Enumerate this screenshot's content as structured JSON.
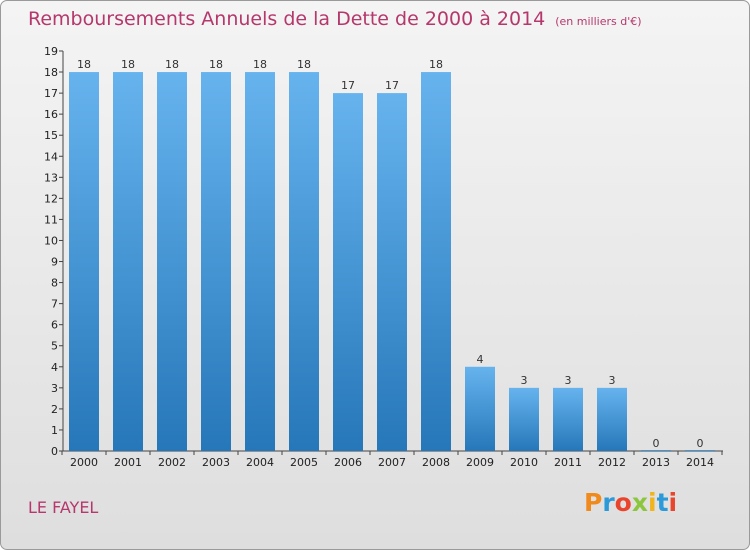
{
  "header": {
    "title": "Remboursements Annuels de la Dette de 2000 à 2014",
    "unit": "(en milliers d'€)"
  },
  "footer": {
    "place": "LE FAYEL",
    "logo_text": "Proxiti",
    "logo_colors": [
      "#f08a1c",
      "#2c9ad9",
      "#e8452c",
      "#8cc63f",
      "#f0b41c",
      "#2c9ad9",
      "#e8452c"
    ]
  },
  "colors": {
    "bar_light": "#66b3ee",
    "bar_dark": "#2677b9",
    "title": "#b5376c"
  },
  "chart_data": {
    "type": "bar",
    "categories": [
      "2000",
      "2001",
      "2002",
      "2003",
      "2004",
      "2005",
      "2006",
      "2007",
      "2008",
      "2009",
      "2010",
      "2011",
      "2012",
      "2013",
      "2014"
    ],
    "values": [
      18,
      18,
      18,
      18,
      18,
      18,
      17,
      17,
      18,
      4,
      3,
      3,
      3,
      0,
      0
    ],
    "title": "Remboursements Annuels de la Dette de 2000 à 2014",
    "xlabel": "",
    "ylabel": "",
    "ylim": [
      0,
      19
    ],
    "yticks": [
      "0",
      "1",
      "2",
      "3",
      "4",
      "5",
      "6",
      "7",
      "8",
      "9",
      "10",
      "11",
      "12",
      "13",
      "14",
      "15",
      "16",
      "17",
      "18",
      "19"
    ],
    "grid": false,
    "legend": "none"
  }
}
